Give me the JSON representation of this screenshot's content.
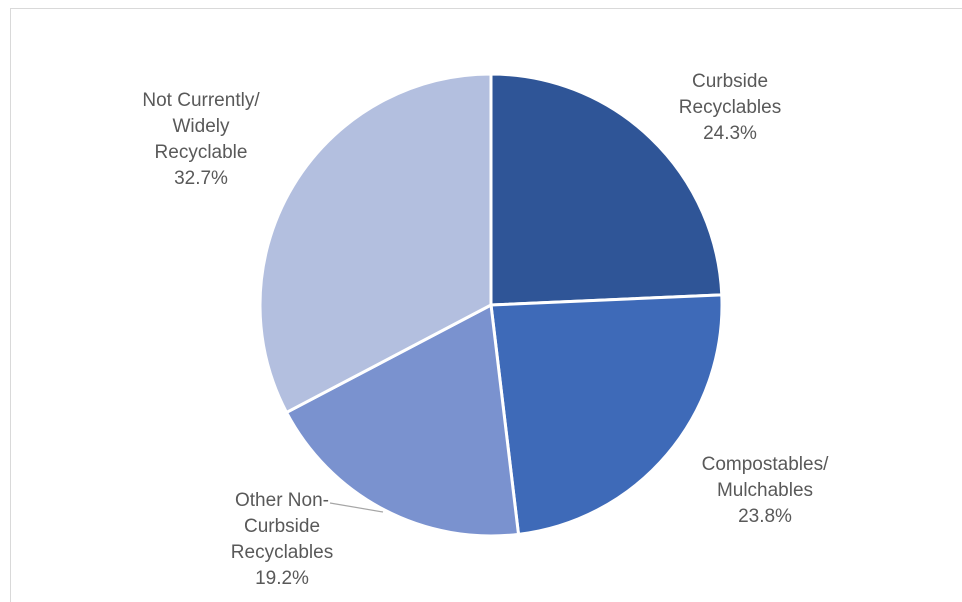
{
  "chart_data": {
    "type": "pie",
    "start_angle_deg": 0,
    "direction": "clockwise",
    "slices": [
      {
        "label_lines": [
          "Curbside",
          "Recyclables"
        ],
        "value_label": "24.3%",
        "value": 24.3,
        "color": "#2F5597"
      },
      {
        "label_lines": [
          "Compostables/",
          "Mulchables"
        ],
        "value_label": "23.8%",
        "value": 23.8,
        "color": "#3E6AB8"
      },
      {
        "label_lines": [
          "Other Non-",
          "Curbside",
          "Recyclables"
        ],
        "value_label": "19.2%",
        "value": 19.2,
        "color": "#7A92CF"
      },
      {
        "label_lines": [
          "Not Currently/",
          "Widely",
          "Recyclable"
        ],
        "value_label": "32.7%",
        "value": 32.7,
        "color": "#B3BFDF"
      }
    ]
  }
}
